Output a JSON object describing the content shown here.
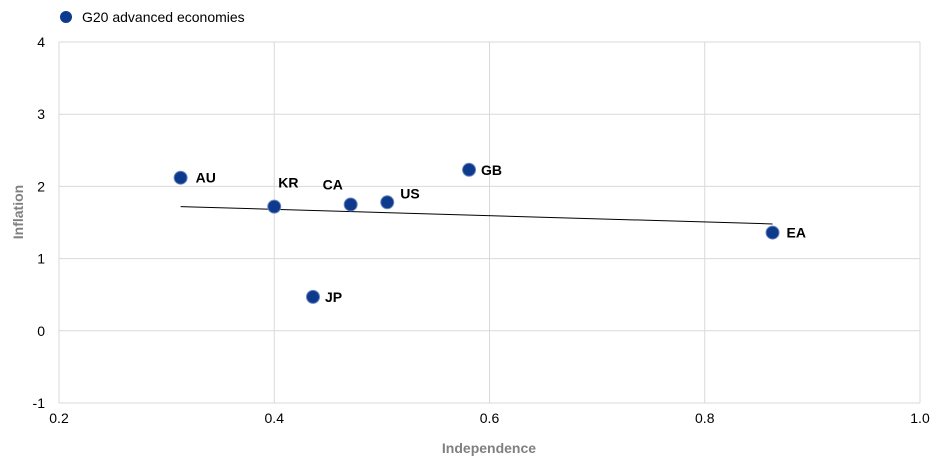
{
  "chart_data": {
    "type": "scatter",
    "xlabel": "Independence",
    "ylabel": "Inflation",
    "xlim": [
      0.2,
      1.0
    ],
    "ylim": [
      -1,
      4
    ],
    "xticks": [
      "0.2",
      "0.4",
      "0.6",
      "0.8",
      "1.0"
    ],
    "yticks": [
      "-1",
      "0",
      "1",
      "2",
      "3",
      "4"
    ],
    "grid": true,
    "legend": {
      "placement": "top-left",
      "entries": [
        "G20 advanced economies"
      ]
    },
    "series": [
      {
        "name": "G20 advanced economies",
        "color": "#0d3a8c",
        "points": [
          {
            "label": "AU",
            "x": 0.313,
            "y": 2.12
          },
          {
            "label": "KR",
            "x": 0.4,
            "y": 1.72
          },
          {
            "label": "JP",
            "x": 0.436,
            "y": 0.47
          },
          {
            "label": "CA",
            "x": 0.471,
            "y": 1.75
          },
          {
            "label": "US",
            "x": 0.505,
            "y": 1.78
          },
          {
            "label": "GB",
            "x": 0.581,
            "y": 2.23
          },
          {
            "label": "EA",
            "x": 0.863,
            "y": 1.36
          }
        ]
      }
    ],
    "trendline": {
      "x": [
        0.313,
        0.863
      ],
      "y": [
        1.72,
        1.48
      ],
      "color": "#000000"
    }
  }
}
